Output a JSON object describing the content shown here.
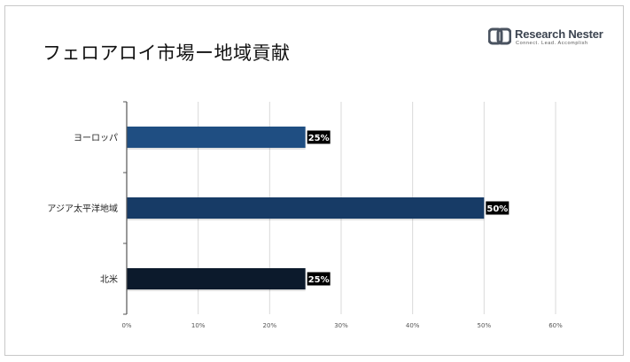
{
  "title": "フェロアロイ市場ー地域貢献",
  "logo": {
    "brand": "Research Nester",
    "tagline": "Connect. Lead. Accomplish",
    "icon": "rn-logo-icon"
  },
  "colors": {
    "europe": "#1f4e82",
    "asia_pacific": "#173b66",
    "north_america": "#0c1a2c",
    "label_bg": "#000000",
    "grid": "#d9d9d9"
  },
  "chart_data": {
    "type": "bar",
    "orientation": "horizontal",
    "categories": [
      "ヨーロッパ",
      "アジア太平洋地域",
      "北米"
    ],
    "values": [
      25,
      50,
      25
    ],
    "data_labels": [
      "25%",
      "50%",
      "25%"
    ],
    "xlim": [
      0,
      60
    ],
    "xticks": [
      "0%",
      "10%",
      "20%",
      "30%",
      "40%",
      "50%",
      "60%"
    ],
    "grid": "vertical",
    "xlabel": "",
    "ylabel": ""
  }
}
